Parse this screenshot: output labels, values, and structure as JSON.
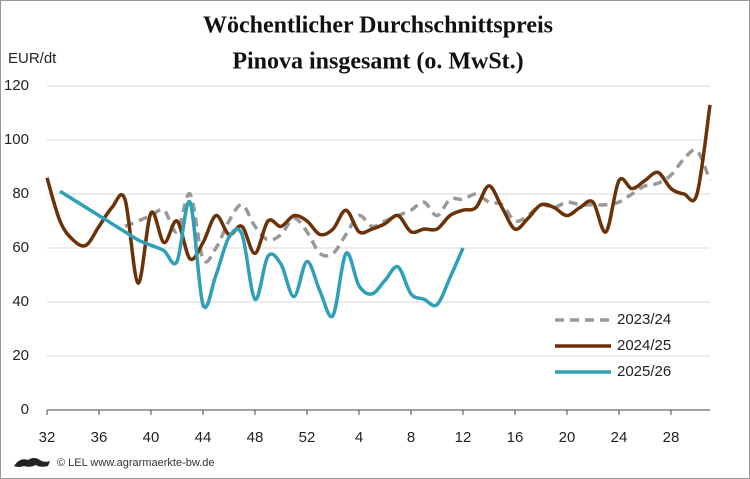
{
  "chart_data": {
    "type": "line",
    "title": [
      "Wöchentlicher Durchschnittspreis",
      "Pinova insgesamt (o. MwSt.)"
    ],
    "y_label": "EUR/dt",
    "footer": "© LEL www.agrarmaerkte-bw.de",
    "categories": [
      "32",
      null,
      null,
      null,
      "36",
      null,
      null,
      null,
      "40",
      null,
      null,
      null,
      "44",
      null,
      null,
      null,
      "48",
      null,
      null,
      null,
      "52",
      null,
      null,
      null,
      "4",
      null,
      null,
      null,
      "8",
      null,
      null,
      null,
      "12",
      null,
      null,
      null,
      "16",
      null,
      null,
      null,
      "20",
      null,
      null,
      null,
      "24",
      null,
      null,
      null,
      "28",
      null,
      null,
      null
    ],
    "ylim": [
      0,
      120
    ],
    "yticks": [
      0,
      20,
      40,
      60,
      80,
      100,
      120
    ],
    "grid": true,
    "legend": "lower right",
    "series": [
      {
        "name": "2023/24",
        "color": "#999999",
        "style": "dashed",
        "values": [
          null,
          null,
          null,
          null,
          null,
          null,
          68,
          70,
          72,
          74,
          66,
          80,
          56,
          60,
          70,
          76,
          68,
          63,
          65,
          71,
          66,
          58,
          58,
          65,
          72,
          68,
          70,
          72,
          74,
          77,
          72,
          78,
          78,
          80,
          77,
          76,
          70,
          72,
          76,
          75,
          77,
          76,
          76,
          76,
          77,
          80,
          83,
          84,
          87,
          93,
          96,
          85
        ]
      },
      {
        "name": "2024/25",
        "color": "#6b3208",
        "style": "solid",
        "values": [
          86,
          70,
          63,
          61,
          68,
          75,
          78,
          47,
          73,
          62,
          70,
          56,
          62,
          72,
          65,
          68,
          58,
          70,
          68,
          72,
          70,
          65,
          67,
          74,
          66,
          67,
          69,
          72,
          66,
          67,
          67,
          72,
          74,
          75,
          83,
          75,
          67,
          71,
          76,
          75,
          72,
          75,
          77,
          66,
          85,
          82,
          85,
          88,
          82,
          80,
          80,
          113
        ]
      },
      {
        "name": "2025/26",
        "color": "#2fa0b5",
        "style": "solid",
        "values": [
          null,
          81,
          78,
          75,
          72,
          69,
          66,
          63,
          61,
          59,
          55,
          77,
          39,
          50,
          64,
          65,
          41,
          57,
          54,
          42,
          55,
          44,
          35,
          58,
          46,
          43,
          48,
          53,
          43,
          41,
          39,
          49,
          60,
          null,
          null,
          null,
          null,
          null,
          null,
          null,
          null,
          null,
          null,
          null,
          null,
          null,
          null,
          null,
          null,
          null,
          null,
          null
        ]
      }
    ]
  }
}
